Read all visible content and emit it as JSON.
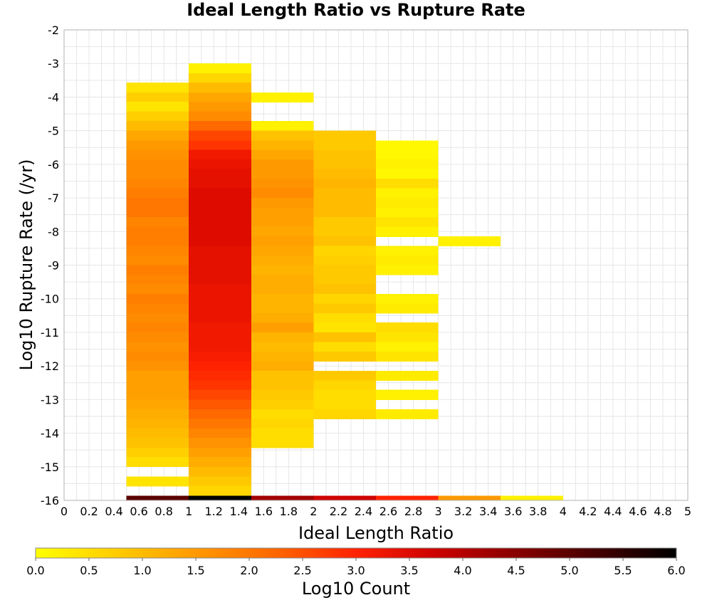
{
  "chart_data": {
    "type": "heatmap",
    "title": "Ideal Length Ratio vs Rupture Rate",
    "xlabel": "Ideal Length Ratio",
    "ylabel": "Log10 Rupture Rate (/yr)",
    "xlim": [
      0,
      5
    ],
    "ylim": [
      -16,
      -2
    ],
    "x_ticks": [
      "0",
      "0.2",
      "0.4",
      "0.6",
      "0.8",
      "1",
      "1.2",
      "1.4",
      "1.6",
      "1.8",
      "2",
      "2.2",
      "2.4",
      "2.6",
      "2.8",
      "3",
      "3.2",
      "3.4",
      "3.6",
      "3.8",
      "4",
      "4.2",
      "4.4",
      "4.6",
      "4.8",
      "5"
    ],
    "y_ticks": [
      "-2",
      "-3",
      "-4",
      "-5",
      "-6",
      "-7",
      "-8",
      "-9",
      "-10",
      "-11",
      "-12",
      "-13",
      "-14",
      "-15",
      "-16"
    ],
    "grid": true,
    "bin_width_x": 0.5,
    "bin_height_y": 0.286,
    "colorbar": {
      "label": "Log10 Count",
      "range": [
        0,
        6
      ],
      "ticks": [
        "0.0",
        "0.5",
        "1.0",
        "1.5",
        "2.0",
        "2.5",
        "3.0",
        "3.5",
        "4.0",
        "4.5",
        "5.0",
        "5.5",
        "6.0"
      ],
      "colors": [
        "#ffff00",
        "#ffcc00",
        "#ff9900",
        "#ff6600",
        "#ff2200",
        "#cc0000",
        "#880000",
        "#440000",
        "#000000"
      ]
    },
    "columns": [
      {
        "x_range": [
          0.5,
          1.0
        ],
        "cells": [
          [
            -3.57,
            0.4
          ],
          [
            -3.86,
            0.7
          ],
          [
            -4.14,
            0.4
          ],
          [
            -4.43,
            0.7
          ],
          [
            -4.71,
            1.0
          ],
          [
            -5.0,
            1.3
          ],
          [
            -5.29,
            1.5
          ],
          [
            -5.57,
            1.6
          ],
          [
            -5.86,
            1.7
          ],
          [
            -6.14,
            1.7
          ],
          [
            -6.43,
            1.8
          ],
          [
            -6.71,
            1.9
          ],
          [
            -7.0,
            2.0
          ],
          [
            -7.29,
            2.0
          ],
          [
            -7.57,
            1.8
          ],
          [
            -7.86,
            1.9
          ],
          [
            -8.14,
            1.9
          ],
          [
            -8.43,
            1.8
          ],
          [
            -8.71,
            1.7
          ],
          [
            -9.0,
            1.9
          ],
          [
            -9.29,
            1.8
          ],
          [
            -9.57,
            1.7
          ],
          [
            -9.86,
            1.9
          ],
          [
            -10.14,
            1.8
          ],
          [
            -10.43,
            1.7
          ],
          [
            -10.71,
            1.8
          ],
          [
            -11.0,
            1.7
          ],
          [
            -11.29,
            1.6
          ],
          [
            -11.57,
            1.7
          ],
          [
            -11.86,
            1.6
          ],
          [
            -12.14,
            1.4
          ],
          [
            -12.43,
            1.4
          ],
          [
            -12.71,
            1.4
          ],
          [
            -13.0,
            1.3
          ],
          [
            -13.29,
            1.2
          ],
          [
            -13.57,
            1.1
          ],
          [
            -13.86,
            1.0
          ],
          [
            -14.14,
            0.9
          ],
          [
            -14.43,
            0.7
          ],
          [
            -14.71,
            0.5
          ],
          [
            -15.29,
            0.4
          ],
          [
            -15.86,
            5.0
          ]
        ]
      },
      {
        "x_range": [
          1.0,
          1.5
        ],
        "cells": [
          [
            -3.0,
            0.2
          ],
          [
            -3.29,
            0.6
          ],
          [
            -3.57,
            1.0
          ],
          [
            -3.86,
            1.3
          ],
          [
            -4.14,
            1.5
          ],
          [
            -4.43,
            1.7
          ],
          [
            -4.71,
            2.2
          ],
          [
            -5.0,
            2.6
          ],
          [
            -5.29,
            2.8
          ],
          [
            -5.57,
            3.2
          ],
          [
            -5.86,
            3.3
          ],
          [
            -6.14,
            3.4
          ],
          [
            -6.43,
            3.4
          ],
          [
            -6.71,
            3.5
          ],
          [
            -7.0,
            3.5
          ],
          [
            -7.29,
            3.5
          ],
          [
            -7.57,
            3.5
          ],
          [
            -7.86,
            3.5
          ],
          [
            -8.14,
            3.5
          ],
          [
            -8.43,
            3.4
          ],
          [
            -8.71,
            3.4
          ],
          [
            -9.0,
            3.4
          ],
          [
            -9.29,
            3.4
          ],
          [
            -9.57,
            3.3
          ],
          [
            -9.86,
            3.3
          ],
          [
            -10.14,
            3.3
          ],
          [
            -10.43,
            3.3
          ],
          [
            -10.71,
            3.2
          ],
          [
            -11.0,
            3.2
          ],
          [
            -11.29,
            3.2
          ],
          [
            -11.57,
            3.1
          ],
          [
            -11.86,
            3.0
          ],
          [
            -12.14,
            2.9
          ],
          [
            -12.43,
            2.8
          ],
          [
            -12.71,
            2.6
          ],
          [
            -13.0,
            2.4
          ],
          [
            -13.29,
            2.2
          ],
          [
            -13.57,
            2.0
          ],
          [
            -13.86,
            1.8
          ],
          [
            -14.14,
            1.6
          ],
          [
            -14.43,
            1.4
          ],
          [
            -14.71,
            1.2
          ],
          [
            -15.0,
            1.0
          ],
          [
            -15.29,
            0.8
          ],
          [
            -15.57,
            0.6
          ],
          [
            -15.86,
            6.0
          ]
        ]
      },
      {
        "x_range": [
          1.5,
          2.0
        ],
        "cells": [
          [
            -3.86,
            0.2
          ],
          [
            -4.71,
            0.2
          ],
          [
            -5.0,
            0.9
          ],
          [
            -5.29,
            1.1
          ],
          [
            -5.57,
            1.3
          ],
          [
            -5.86,
            1.5
          ],
          [
            -6.14,
            1.5
          ],
          [
            -6.43,
            1.6
          ],
          [
            -6.71,
            1.7
          ],
          [
            -7.0,
            1.5
          ],
          [
            -7.29,
            1.4
          ],
          [
            -7.57,
            1.4
          ],
          [
            -7.86,
            1.3
          ],
          [
            -8.14,
            1.4
          ],
          [
            -8.43,
            1.3
          ],
          [
            -8.71,
            1.2
          ],
          [
            -9.0,
            1.1
          ],
          [
            -9.29,
            1.2
          ],
          [
            -9.57,
            1.2
          ],
          [
            -9.86,
            1.1
          ],
          [
            -10.14,
            1.1
          ],
          [
            -10.43,
            1.2
          ],
          [
            -10.71,
            1.4
          ],
          [
            -11.0,
            1.1
          ],
          [
            -11.29,
            1.0
          ],
          [
            -11.57,
            1.1
          ],
          [
            -11.86,
            1.2
          ],
          [
            -12.14,
            0.9
          ],
          [
            -12.43,
            0.9
          ],
          [
            -12.71,
            0.8
          ],
          [
            -13.0,
            0.7
          ],
          [
            -13.29,
            0.5
          ],
          [
            -13.57,
            0.6
          ],
          [
            -13.86,
            0.5
          ],
          [
            -14.14,
            0.5
          ],
          [
            -15.86,
            4.2
          ]
        ]
      },
      {
        "x_range": [
          2.0,
          2.5
        ],
        "cells": [
          [
            -5.0,
            0.8
          ],
          [
            -5.29,
            0.8
          ],
          [
            -5.57,
            0.9
          ],
          [
            -5.86,
            0.9
          ],
          [
            -6.14,
            1.0
          ],
          [
            -6.43,
            1.1
          ],
          [
            -6.71,
            1.0
          ],
          [
            -7.0,
            1.0
          ],
          [
            -7.29,
            1.0
          ],
          [
            -7.57,
            0.8
          ],
          [
            -7.86,
            0.8
          ],
          [
            -8.14,
            0.9
          ],
          [
            -8.43,
            0.6
          ],
          [
            -8.71,
            0.7
          ],
          [
            -9.0,
            0.8
          ],
          [
            -9.29,
            0.8
          ],
          [
            -9.57,
            0.9
          ],
          [
            -9.86,
            0.6
          ],
          [
            -10.14,
            0.8
          ],
          [
            -10.43,
            0.5
          ],
          [
            -10.71,
            0.4
          ],
          [
            -11.0,
            0.9
          ],
          [
            -11.29,
            0.5
          ],
          [
            -11.57,
            0.8
          ],
          [
            -12.14,
            0.8
          ],
          [
            -12.43,
            0.6
          ],
          [
            -12.71,
            0.5
          ],
          [
            -13.0,
            0.5
          ],
          [
            -13.29,
            0.6
          ],
          [
            -15.86,
            3.7
          ]
        ]
      },
      {
        "x_range": [
          2.5,
          3.0
        ],
        "cells": [
          [
            -5.29,
            0.1
          ],
          [
            -5.57,
            0.1
          ],
          [
            -5.86,
            0.2
          ],
          [
            -6.14,
            0.1
          ],
          [
            -6.43,
            0.5
          ],
          [
            -6.71,
            0.2
          ],
          [
            -7.0,
            0.3
          ],
          [
            -7.29,
            0.2
          ],
          [
            -7.57,
            0.4
          ],
          [
            -7.86,
            0.2
          ],
          [
            -8.43,
            0.2
          ],
          [
            -8.71,
            0.3
          ],
          [
            -9.0,
            0.2
          ],
          [
            -9.86,
            0.2
          ],
          [
            -10.14,
            0.3
          ],
          [
            -10.71,
            0.5
          ],
          [
            -11.0,
            0.4
          ],
          [
            -11.29,
            0.2
          ],
          [
            -11.57,
            0.4
          ],
          [
            -12.14,
            0.3
          ],
          [
            -12.71,
            0.2
          ],
          [
            -13.29,
            0.3
          ],
          [
            -15.86,
            3.0
          ]
        ]
      },
      {
        "x_range": [
          3.0,
          3.5
        ],
        "cells": [
          [
            -8.14,
            0.2
          ],
          [
            -15.86,
            1.5
          ]
        ]
      },
      {
        "x_range": [
          3.5,
          4.0
        ],
        "cells": [
          [
            -15.86,
            0.2
          ]
        ]
      }
    ]
  }
}
